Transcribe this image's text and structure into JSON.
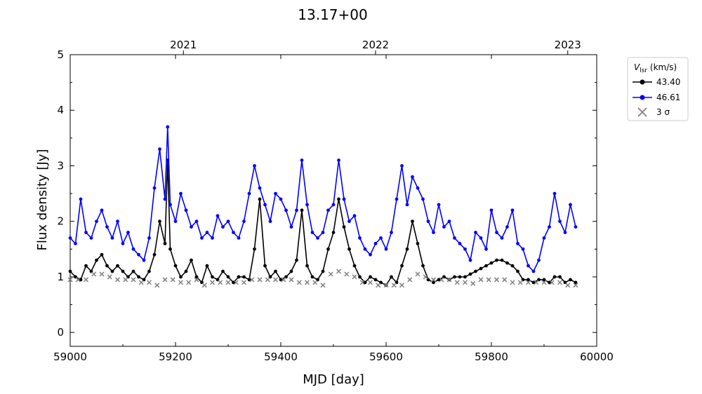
{
  "chart_data": {
    "type": "line",
    "title": "13.17+00",
    "xlabel": "MJD [day]",
    "ylabel": "Flux density [Jy]",
    "xlim": [
      59000,
      60000
    ],
    "ylim": [
      -0.25,
      5
    ],
    "xticks": [
      "59000",
      "59200",
      "59400",
      "59600",
      "59800",
      "60000"
    ],
    "yticks": [
      "0",
      "1",
      "2",
      "3",
      "4",
      "5"
    ],
    "top_axis_ticks": [
      {
        "mjd": 59215,
        "label": "2021"
      },
      {
        "mjd": 59580,
        "label": "2022"
      },
      {
        "mjd": 59945,
        "label": "2023"
      }
    ],
    "legend": {
      "title_main": "V",
      "title_sub": "lsr",
      "title_unit": " (km/s)",
      "placement": "outside-top-right",
      "entries": [
        "43.40",
        "46.61",
        "3 σ"
      ]
    },
    "colors": {
      "series1": "#000000",
      "series2": "#0000ff",
      "sigma": "#808080"
    },
    "series": [
      {
        "name": "43.40",
        "x": [
          59000,
          59010,
          59020,
          59030,
          59040,
          59050,
          59060,
          59070,
          59080,
          59090,
          59100,
          59110,
          59120,
          59130,
          59140,
          59150,
          59160,
          59170,
          59180,
          59185,
          59190,
          59200,
          59210,
          59220,
          59230,
          59240,
          59250,
          59260,
          59270,
          59280,
          59290,
          59300,
          59310,
          59320,
          59330,
          59340,
          59350,
          59360,
          59370,
          59380,
          59390,
          59400,
          59410,
          59420,
          59430,
          59440,
          59450,
          59460,
          59470,
          59480,
          59490,
          59500,
          59510,
          59520,
          59530,
          59540,
          59550,
          59560,
          59570,
          59580,
          59590,
          59600,
          59610,
          59620,
          59630,
          59640,
          59650,
          59660,
          59670,
          59680,
          59690,
          59700,
          59710,
          59720,
          59730,
          59740,
          59750,
          59760,
          59770,
          59780,
          59790,
          59800,
          59810,
          59820,
          59830,
          59840,
          59850,
          59860,
          59870,
          59880,
          59890,
          59900,
          59910,
          59920,
          59930,
          59940,
          59950,
          59960
        ],
        "y": [
          1.1,
          1.0,
          0.95,
          1.2,
          1.1,
          1.3,
          1.4,
          1.2,
          1.1,
          1.2,
          1.1,
          1.0,
          1.1,
          1.0,
          0.95,
          1.1,
          1.4,
          2.0,
          1.6,
          3.1,
          1.5,
          1.2,
          1.0,
          1.1,
          1.3,
          1.0,
          0.9,
          1.2,
          1.0,
          0.95,
          1.1,
          1.0,
          0.9,
          1.0,
          1.0,
          0.95,
          1.5,
          2.4,
          1.2,
          1.0,
          1.1,
          0.95,
          1.0,
          1.1,
          1.3,
          2.2,
          1.2,
          1.0,
          0.95,
          1.1,
          1.5,
          1.8,
          2.4,
          1.9,
          1.5,
          1.2,
          1.0,
          0.9,
          1.0,
          0.95,
          0.9,
          0.85,
          1.0,
          0.9,
          1.2,
          1.5,
          2.0,
          1.6,
          1.2,
          0.95,
          0.9,
          0.95,
          1.0,
          0.95,
          1.0,
          1.0,
          1.0,
          1.05,
          1.1,
          1.15,
          1.2,
          1.25,
          1.3,
          1.3,
          1.25,
          1.2,
          1.1,
          0.95,
          0.95,
          0.9,
          0.95,
          0.95,
          0.9,
          1.0,
          1.0,
          0.9,
          0.95,
          0.9
        ]
      },
      {
        "name": "46.61",
        "x": [
          59000,
          59010,
          59020,
          59030,
          59040,
          59050,
          59060,
          59070,
          59080,
          59090,
          59100,
          59110,
          59120,
          59130,
          59140,
          59150,
          59160,
          59170,
          59180,
          59185,
          59190,
          59200,
          59210,
          59220,
          59230,
          59240,
          59250,
          59260,
          59270,
          59280,
          59290,
          59300,
          59310,
          59320,
          59330,
          59340,
          59350,
          59360,
          59370,
          59380,
          59390,
          59400,
          59410,
          59420,
          59430,
          59440,
          59450,
          59460,
          59470,
          59480,
          59490,
          59500,
          59510,
          59520,
          59530,
          59540,
          59550,
          59560,
          59570,
          59580,
          59590,
          59600,
          59610,
          59620,
          59630,
          59640,
          59650,
          59660,
          59670,
          59680,
          59690,
          59700,
          59710,
          59720,
          59730,
          59740,
          59750,
          59760,
          59770,
          59780,
          59790,
          59800,
          59810,
          59820,
          59830,
          59840,
          59850,
          59860,
          59870,
          59880,
          59890,
          59900,
          59910,
          59920,
          59930,
          59940,
          59950,
          59960
        ],
        "y": [
          1.7,
          1.6,
          2.4,
          1.8,
          1.7,
          2.0,
          2.2,
          1.9,
          1.7,
          2.0,
          1.6,
          1.8,
          1.5,
          1.4,
          1.3,
          1.7,
          2.6,
          3.3,
          2.4,
          3.7,
          2.3,
          2.0,
          2.5,
          2.2,
          1.9,
          2.0,
          1.7,
          1.8,
          1.7,
          2.1,
          1.9,
          2.0,
          1.8,
          1.7,
          2.0,
          2.5,
          3.0,
          2.6,
          2.3,
          2.0,
          2.5,
          2.4,
          2.2,
          1.9,
          2.2,
          3.1,
          2.3,
          1.8,
          1.7,
          1.8,
          2.2,
          2.3,
          3.1,
          2.4,
          2.0,
          2.1,
          1.7,
          1.5,
          1.4,
          1.6,
          1.7,
          1.5,
          1.8,
          2.4,
          3.0,
          2.3,
          2.8,
          2.6,
          2.4,
          2.0,
          1.8,
          2.3,
          1.9,
          2.0,
          1.7,
          1.6,
          1.5,
          1.3,
          1.8,
          1.7,
          1.5,
          2.2,
          1.8,
          1.7,
          1.9,
          2.2,
          1.6,
          1.5,
          1.2,
          1.1,
          1.3,
          1.7,
          1.9,
          2.5,
          2.0,
          1.8,
          2.3,
          1.9
        ]
      }
    ],
    "sigma": {
      "name": "3 σ",
      "x": [
        59000,
        59015,
        59030,
        59045,
        59060,
        59075,
        59090,
        59105,
        59120,
        59135,
        59150,
        59165,
        59180,
        59195,
        59210,
        59225,
        59240,
        59255,
        59270,
        59285,
        59300,
        59315,
        59330,
        59345,
        59360,
        59375,
        59390,
        59405,
        59420,
        59435,
        59450,
        59465,
        59480,
        59495,
        59510,
        59525,
        59540,
        59555,
        59570,
        59585,
        59600,
        59615,
        59630,
        59645,
        59660,
        59675,
        59690,
        59705,
        59720,
        59735,
        59750,
        59765,
        59780,
        59795,
        59810,
        59825,
        59840,
        59855,
        59870,
        59885,
        59900,
        59915,
        59930,
        59945,
        59960
      ],
      "y": [
        0.95,
        0.95,
        0.95,
        1.05,
        1.05,
        1.0,
        0.95,
        0.95,
        0.95,
        0.9,
        0.9,
        0.85,
        0.95,
        0.95,
        0.9,
        0.9,
        0.95,
        0.85,
        0.9,
        0.9,
        0.9,
        0.9,
        0.9,
        0.95,
        0.95,
        0.95,
        0.95,
        0.95,
        0.95,
        0.9,
        0.9,
        0.9,
        0.85,
        1.05,
        1.1,
        1.05,
        1.0,
        0.9,
        0.9,
        0.85,
        0.85,
        0.85,
        0.85,
        0.95,
        1.05,
        1.0,
        0.95,
        0.95,
        0.95,
        0.9,
        0.9,
        0.88,
        0.95,
        0.95,
        0.95,
        0.95,
        0.9,
        0.9,
        0.9,
        0.9,
        0.9,
        0.9,
        0.9,
        0.85,
        0.85
      ]
    }
  }
}
